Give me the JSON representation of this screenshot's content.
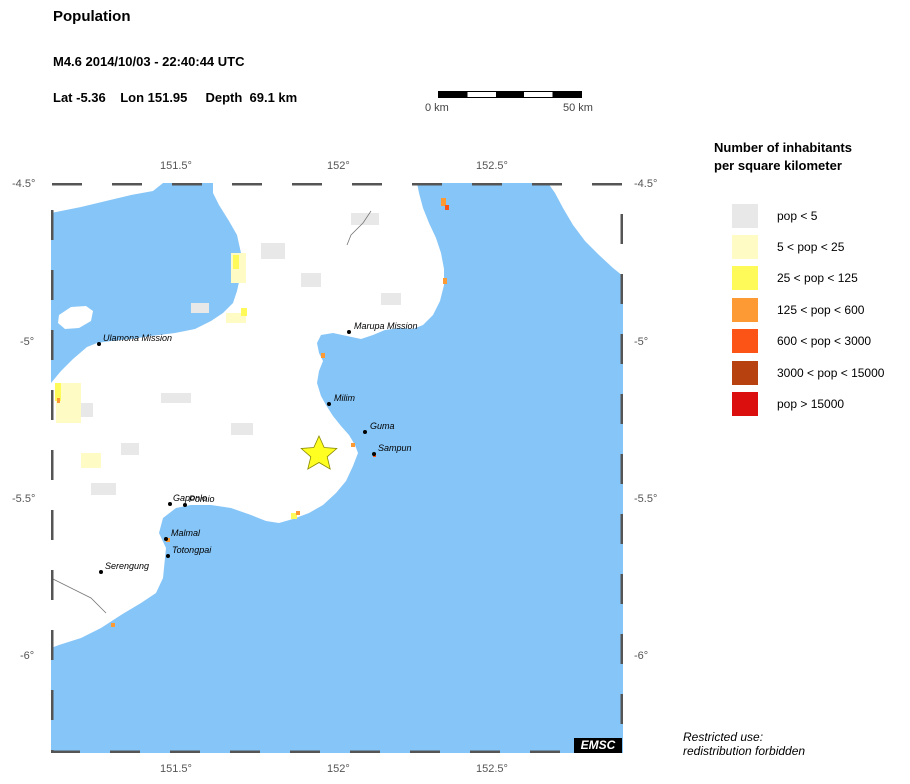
{
  "header": {
    "title": "Population",
    "event": "M4.6  2014/10/03 - 22:40:44 UTC",
    "coords": "Lat -5.36    Lon 151.95     Depth  69.1 km"
  },
  "scale": {
    "start_label": "0 km",
    "end_label": "50 km"
  },
  "map": {
    "lon_ticks": [
      "151.5°",
      "152°",
      "152.5°"
    ],
    "lat_ticks": [
      "-4.5°",
      "-5°",
      "-5.5°",
      "-6°"
    ],
    "epicenter": {
      "lat": -5.36,
      "lon": 151.95
    },
    "places": [
      {
        "name": "Ulamona Mission"
      },
      {
        "name": "Marupa Mission"
      },
      {
        "name": "Milim"
      },
      {
        "name": "Guma"
      },
      {
        "name": "Sampun"
      },
      {
        "name": "Gaponlo"
      },
      {
        "name": "Pomio"
      },
      {
        "name": "Malmal"
      },
      {
        "name": "Totongpai"
      },
      {
        "name": "Serengung"
      }
    ],
    "colors": {
      "sea": "#86c5f7",
      "land": "#ffffff",
      "epicenter": "#ffff22"
    }
  },
  "legend": {
    "title_line1": "Number of inhabitants",
    "title_line2": "per square kilometer",
    "items": [
      {
        "label": "pop < 5",
        "color": "#e8e8e8"
      },
      {
        "label": "5 < pop < 25",
        "color": "#fefcc4"
      },
      {
        "label": "25 < pop < 125",
        "color": "#fdfa5a"
      },
      {
        "label": "125 < pop < 600",
        "color": "#fd9a33"
      },
      {
        "label": "600 < pop < 3000",
        "color": "#fb5416"
      },
      {
        "label": "3000 < pop < 15000",
        "color": "#b8420f"
      },
      {
        "label": "pop > 15000",
        "color": "#dc0f0f"
      }
    ]
  },
  "footer": {
    "restricted_line1": "Restricted use:",
    "restricted_line2": "redistribution forbidden",
    "brand": "EMSC"
  }
}
